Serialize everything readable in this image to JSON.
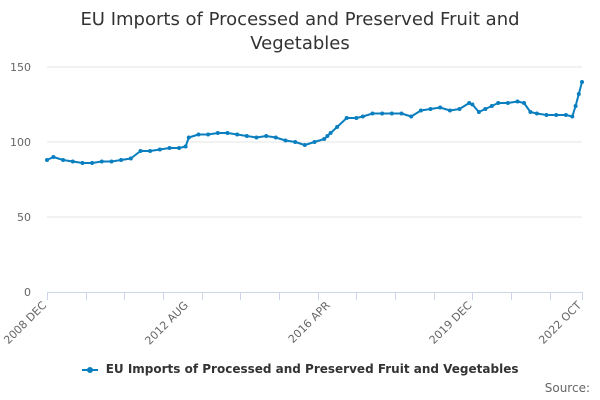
{
  "chart_data": {
    "type": "line",
    "title": "EU Imports of Processed and Preserved Fruit and Vegetables",
    "xlabel": "",
    "ylabel": "",
    "ylim": [
      0,
      150
    ],
    "yticks": [
      "0",
      "50",
      "100",
      "150"
    ],
    "xticks": [
      "2008 DEC",
      "2012 AUG",
      "2016 APR",
      "2019 DEC",
      "2022 OCT"
    ],
    "grid": true,
    "legend_position": "bottom",
    "color": "#0a7fbf",
    "series": [
      {
        "name": "EU Imports of Processed and Preserved Fruit and Vegetables",
        "x": [
          "2008-12",
          "2009-02",
          "2009-05",
          "2009-08",
          "2009-11",
          "2010-02",
          "2010-05",
          "2010-08",
          "2010-11",
          "2011-02",
          "2011-05",
          "2011-08",
          "2011-11",
          "2012-02",
          "2012-05",
          "2012-07",
          "2012-08",
          "2012-11",
          "2013-02",
          "2013-05",
          "2013-08",
          "2013-11",
          "2014-02",
          "2014-05",
          "2014-08",
          "2014-11",
          "2015-02",
          "2015-05",
          "2015-08",
          "2015-11",
          "2016-02",
          "2016-03",
          "2016-04",
          "2016-06",
          "2016-09",
          "2016-12",
          "2017-02",
          "2017-05",
          "2017-08",
          "2017-11",
          "2018-02",
          "2018-05",
          "2018-08",
          "2018-11",
          "2019-02",
          "2019-05",
          "2019-08",
          "2019-11",
          "2019-12",
          "2020-02",
          "2020-04",
          "2020-06",
          "2020-08",
          "2020-11",
          "2021-02",
          "2021-04",
          "2021-06",
          "2021-08",
          "2021-11",
          "2022-02",
          "2022-05",
          "2022-07",
          "2022-08",
          "2022-09",
          "2022-10"
        ],
        "values": [
          88,
          90,
          88,
          87,
          86,
          86,
          87,
          87,
          88,
          89,
          94,
          94,
          95,
          96,
          96,
          97,
          103,
          105,
          105,
          106,
          106,
          105,
          104,
          103,
          104,
          103,
          101,
          100,
          98,
          100,
          102,
          104,
          106,
          110,
          116,
          116,
          117,
          119,
          119,
          119,
          119,
          117,
          121,
          122,
          123,
          121,
          122,
          126,
          125,
          120,
          122,
          124,
          126,
          126,
          127,
          126,
          120,
          119,
          118,
          118,
          118,
          117,
          124,
          132,
          140
        ]
      }
    ]
  },
  "source_label": "Source:"
}
